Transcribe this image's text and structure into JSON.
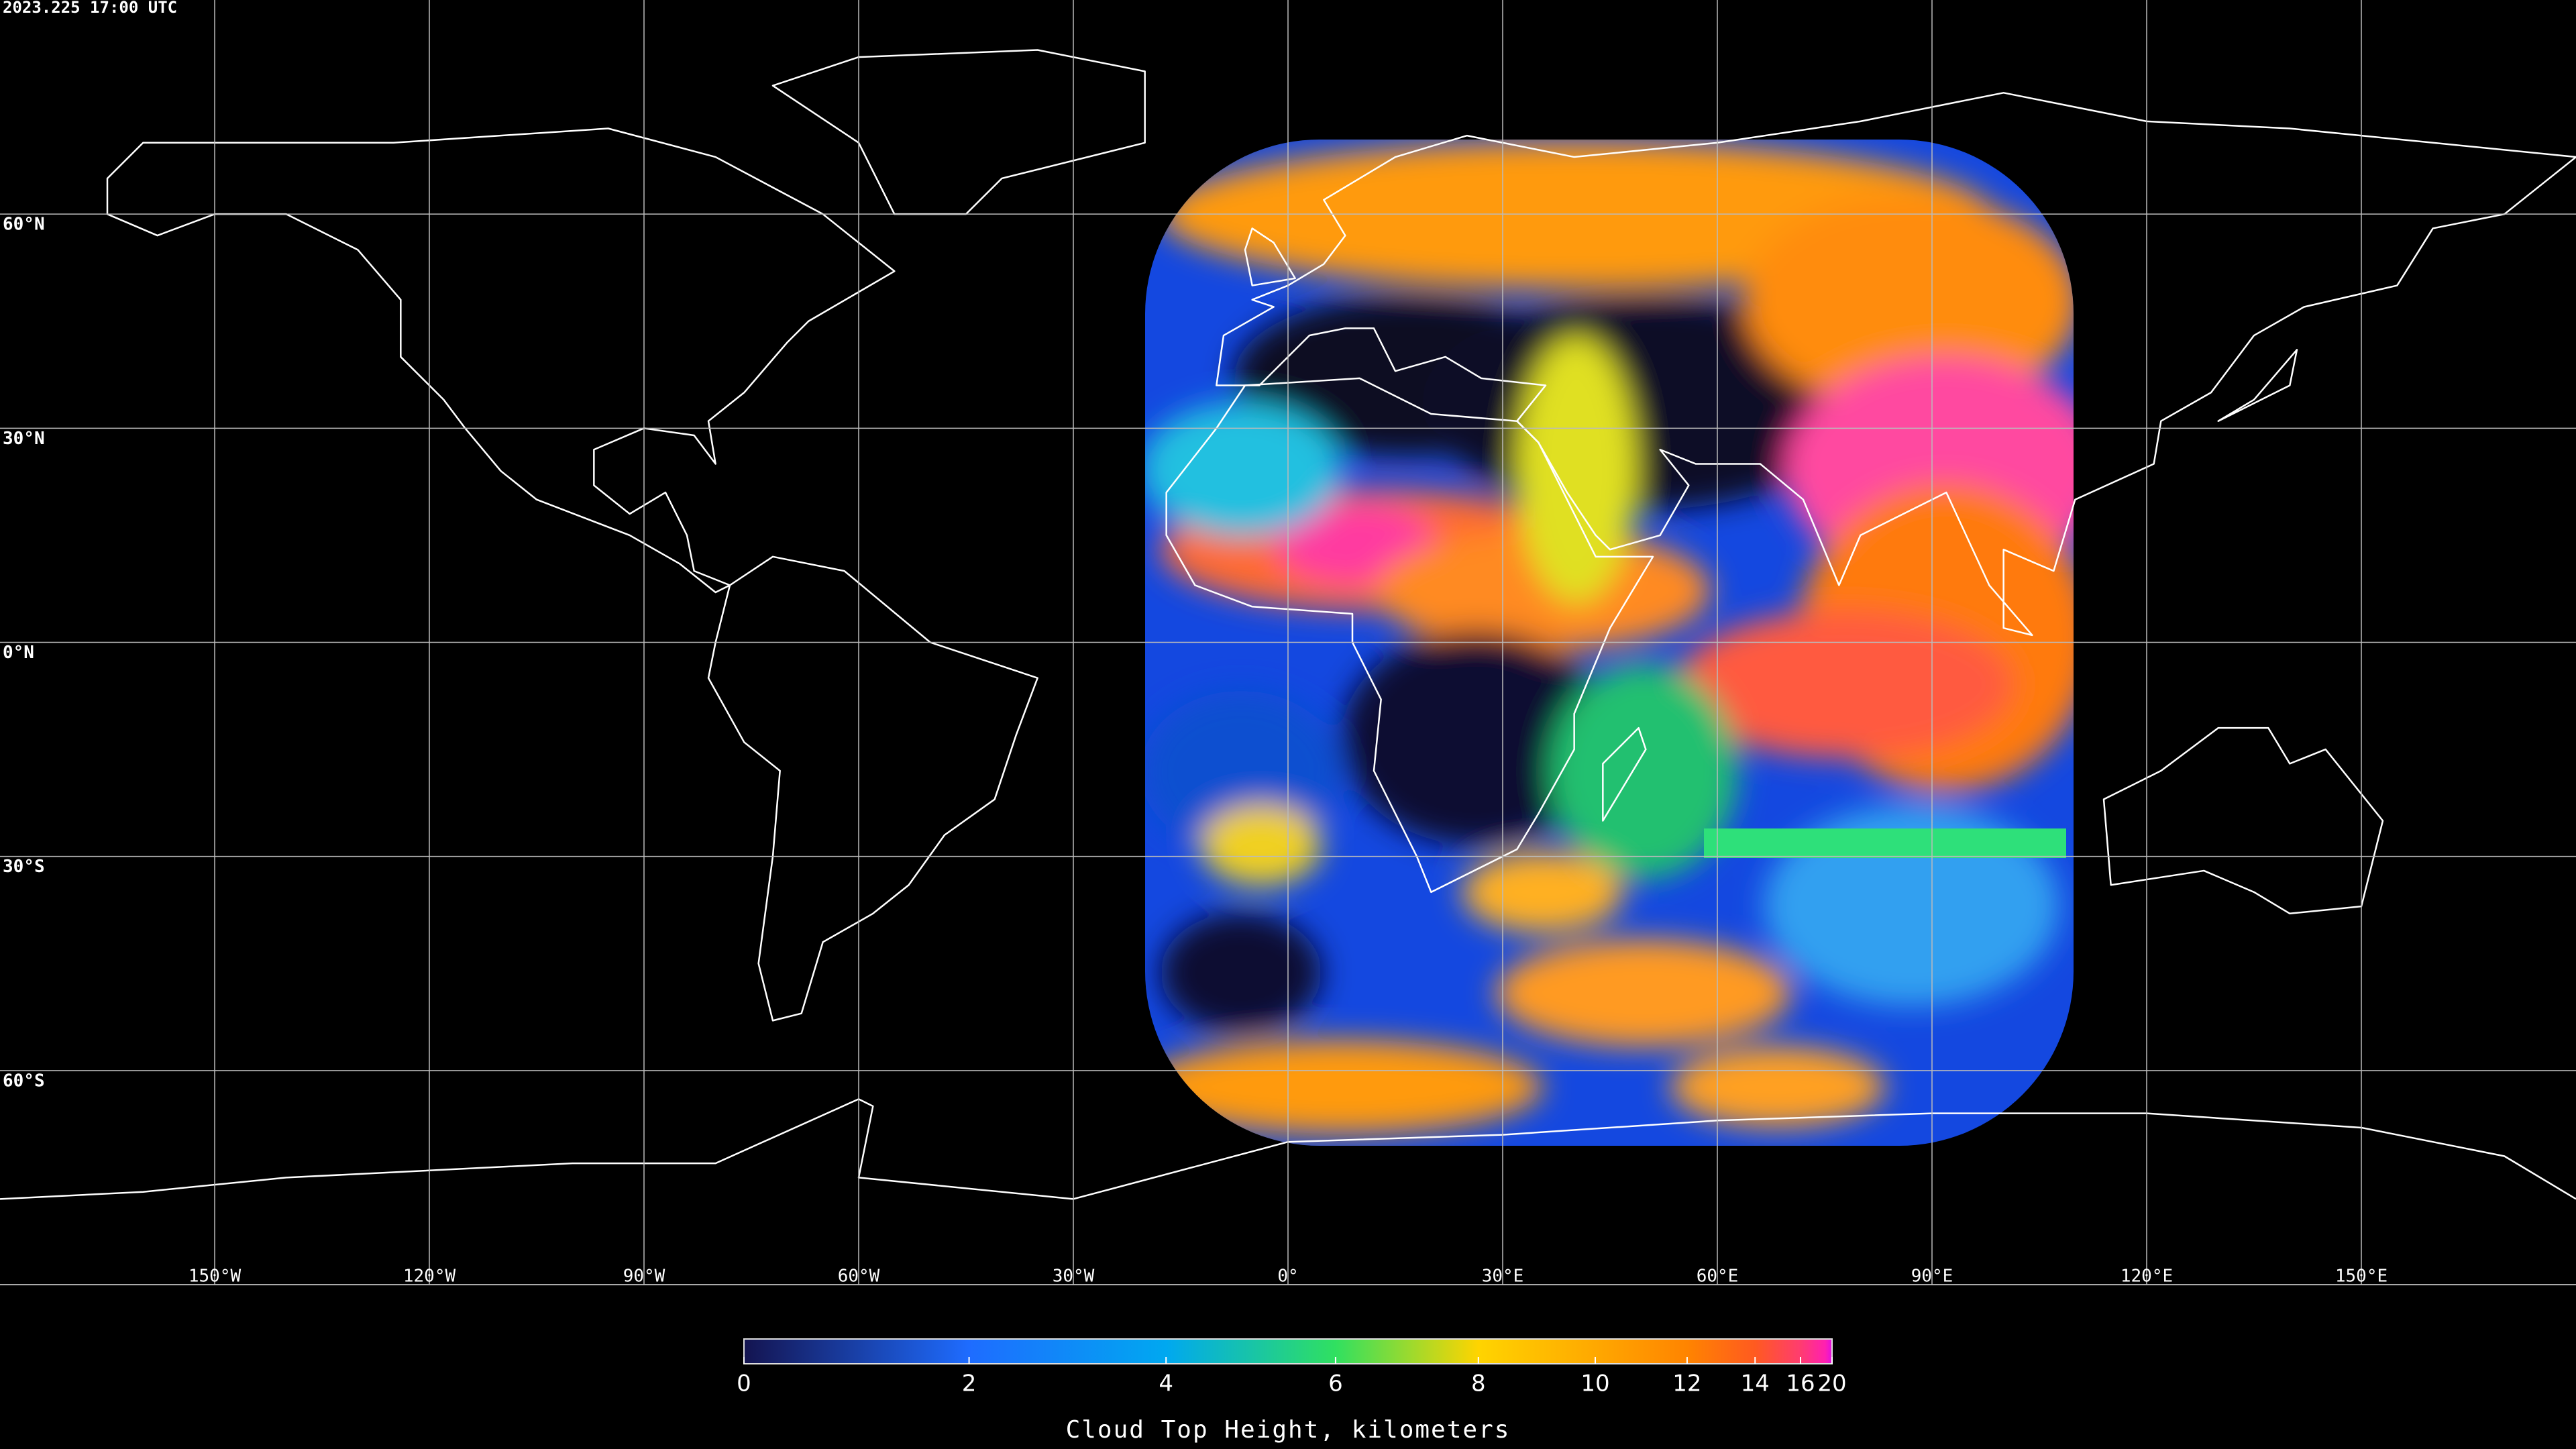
{
  "header": {
    "timestamp": "2023.225 17:00 UTC"
  },
  "chart_data": {
    "type": "map",
    "projection": "equirectangular",
    "xlim": [
      -180,
      180
    ],
    "ylim": [
      -90,
      90
    ],
    "xticks": [
      {
        "value": -150,
        "label": "150°W"
      },
      {
        "value": -120,
        "label": "120°W"
      },
      {
        "value": -90,
        "label": "90°W"
      },
      {
        "value": -60,
        "label": "60°W"
      },
      {
        "value": -30,
        "label": "30°W"
      },
      {
        "value": 0,
        "label": "0°"
      },
      {
        "value": 30,
        "label": "30°E"
      },
      {
        "value": 60,
        "label": "60°E"
      },
      {
        "value": 90,
        "label": "90°E"
      },
      {
        "value": 120,
        "label": "120°E"
      },
      {
        "value": 150,
        "label": "150°E"
      }
    ],
    "yticks": [
      {
        "value": 60,
        "label": "60°N"
      },
      {
        "value": 30,
        "label": "30°N"
      },
      {
        "value": 0,
        "label": "0°N"
      },
      {
        "value": -30,
        "label": "30°S"
      },
      {
        "value": -60,
        "label": "60°S"
      }
    ],
    "grid": true,
    "colorbar": {
      "label": "Cloud Top Height, kilometers",
      "lim": [
        0,
        20
      ],
      "ticks": [
        0,
        2,
        4,
        6,
        8,
        10,
        12,
        14,
        16,
        20
      ],
      "colors": [
        "#141450",
        "#1e6cff",
        "#00a8f0",
        "#30e060",
        "#ffd400",
        "#ffa800",
        "#ff8400",
        "#ff5a20",
        "#ff3c70",
        "#ff20b0",
        "#e010e0"
      ]
    }
  }
}
